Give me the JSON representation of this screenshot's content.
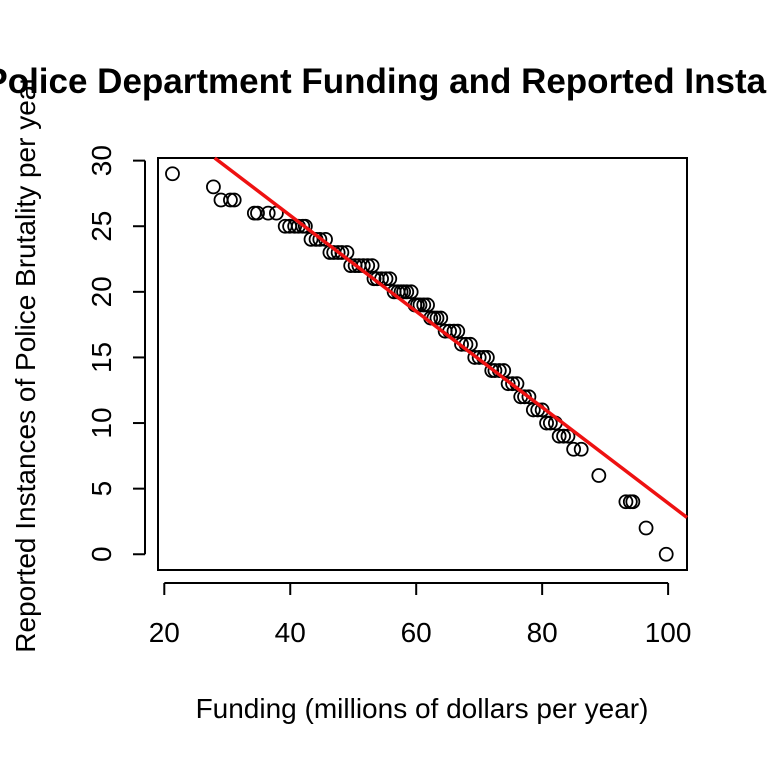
{
  "chart_data": {
    "type": "scatter",
    "title": "Relationship between Police Department Funding and Reported Instances of Police Brutality",
    "xlabel": "Funding (millions of dollars per year)",
    "ylabel": "Reported Instances of Police Brutality per year",
    "xlim": [
      19,
      103
    ],
    "ylim": [
      -1.2,
      30.2
    ],
    "xticks": [
      20,
      40,
      60,
      80,
      100
    ],
    "yticks": [
      0,
      5,
      10,
      15,
      20,
      25,
      30
    ],
    "grid": false,
    "point_color": "#000000",
    "fit_line": {
      "color": "#ee1111",
      "x": [
        28,
        103
      ],
      "y": [
        30.2,
        2.8
      ]
    },
    "x": [
      21.3,
      27.8,
      29.0,
      30.5,
      31.1,
      34.3,
      34.8,
      36.5,
      37.8,
      39.2,
      39.9,
      40.7,
      41.3,
      42.0,
      42.4,
      43.3,
      44.1,
      44.7,
      45.6,
      46.3,
      46.9,
      47.6,
      48.2,
      49.0,
      49.6,
      50.3,
      50.9,
      51.6,
      52.3,
      53.0,
      53.3,
      53.8,
      54.5,
      55.2,
      55.8,
      56.5,
      57.1,
      57.6,
      58.0,
      58.5,
      59.2,
      59.8,
      60.2,
      60.6,
      61.2,
      61.8,
      62.3,
      62.8,
      63.3,
      63.9,
      64.6,
      65.3,
      66.0,
      66.6,
      67.2,
      67.9,
      68.6,
      69.3,
      70.0,
      70.7,
      71.3,
      72.0,
      72.5,
      73.2,
      73.9,
      74.6,
      75.3,
      76.0,
      76.6,
      77.2,
      77.9,
      78.6,
      79.3,
      80.0,
      80.7,
      81.3,
      82.1,
      82.7,
      83.4,
      84.1,
      85.0,
      86.2,
      89.0,
      93.3,
      94.0,
      94.4,
      96.5,
      99.7
    ],
    "y": [
      29,
      28,
      27,
      27,
      27,
      26,
      26,
      26,
      26,
      25,
      25,
      25,
      25,
      25,
      25,
      24,
      24,
      24,
      24,
      23,
      23,
      23,
      23,
      23,
      22,
      22,
      22,
      22,
      22,
      22,
      21,
      21,
      21,
      21,
      21,
      20,
      20,
      20,
      20,
      20,
      20,
      19,
      19,
      19,
      19,
      19,
      18,
      18,
      18,
      18,
      17,
      17,
      17,
      17,
      16,
      16,
      16,
      15,
      15,
      15,
      15,
      14,
      14,
      14,
      14,
      13,
      13,
      13,
      12,
      12,
      12,
      11,
      11,
      11,
      10,
      10,
      10,
      9,
      9,
      9,
      8,
      8,
      6,
      4,
      4,
      4,
      2,
      0
    ]
  }
}
